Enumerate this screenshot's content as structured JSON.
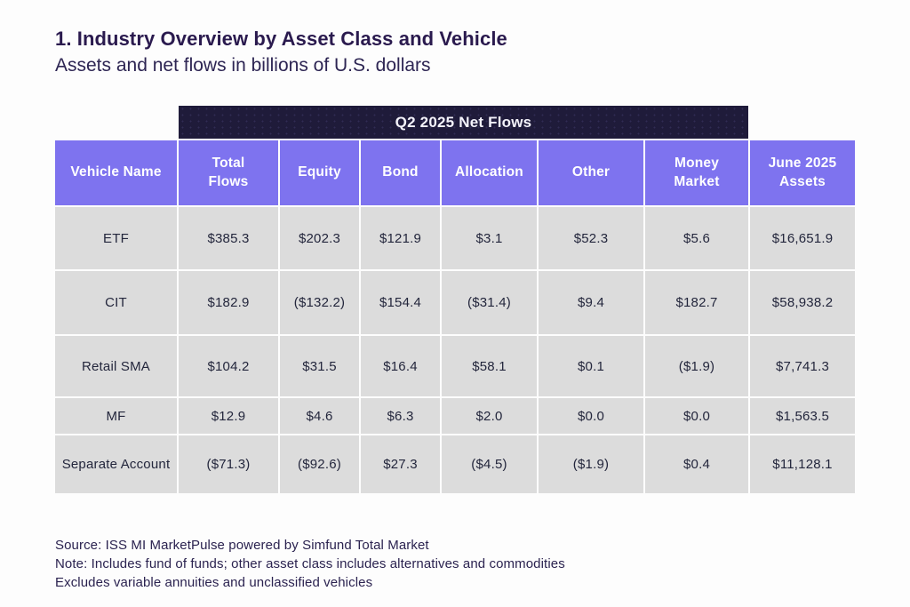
{
  "header": {
    "title": "1. Industry Overview by Asset Class and Vehicle",
    "subtitle": "Assets and net flows in billions of U.S. dollars"
  },
  "chart_data": {
    "type": "table",
    "banner": "Q2 2025 Net Flows",
    "units": "billions of U.S. dollars",
    "columns": [
      "Vehicle Name",
      "Total Flows",
      "Equity",
      "Bond",
      "Allocation",
      "Other",
      "Money Market",
      "June 2025 Assets"
    ],
    "rows": [
      [
        "ETF",
        "$385.3",
        "$202.3",
        "$121.9",
        "$3.1",
        "$52.3",
        "$5.6",
        "$16,651.9"
      ],
      [
        "CIT",
        "$182.9",
        "($132.2)",
        "$154.4",
        "($31.4)",
        "$9.4",
        "$182.7",
        "$58,938.2"
      ],
      [
        "Retail SMA",
        "$104.2",
        "$31.5",
        "$16.4",
        "$58.1",
        "$0.1",
        "($1.9)",
        "$7,741.3"
      ],
      [
        "MF",
        "$12.9",
        "$4.6",
        "$6.3",
        "$2.0",
        "$0.0",
        "$0.0",
        "$1,563.5"
      ],
      [
        "Separate Account",
        "($71.3)",
        "($92.6)",
        "$27.3",
        "($4.5)",
        "($1.9)",
        "$0.4",
        "$11,128.1"
      ]
    ]
  },
  "footer": {
    "source": "Source: ISS MI MarketPulse powered by Simfund Total Market",
    "note1": "Note: Includes fund of funds; other asset class includes alternatives and commodities",
    "note2": "Excludes variable annuities and unclassified vehicles"
  },
  "colors": {
    "header_purple": "#7e73ef",
    "banner_navy": "#1f1b3a",
    "cell_gray": "#dcdcdc",
    "title_text": "#2a1a4e",
    "cell_text": "#23263c",
    "background": "#fdfdfd"
  }
}
